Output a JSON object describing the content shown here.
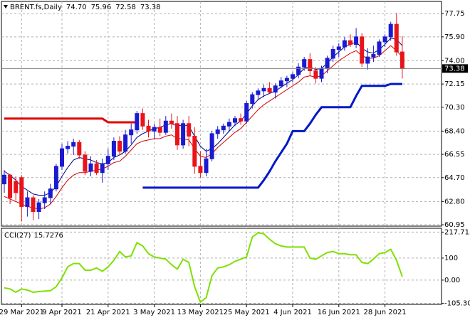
{
  "chart_data": [
    {
      "type": "candlestick",
      "title": "BRENT.fs,Daily",
      "ohlc_labels": [
        "74.70",
        "75.96",
        "72.58",
        "73.38"
      ],
      "categories": [
        null,
        null,
        null,
        "29 Mar 2021",
        null,
        null,
        null,
        null,
        null,
        null,
        "9 Apr 2021",
        null,
        null,
        null,
        null,
        null,
        null,
        null,
        "21 Apr 2021",
        null,
        null,
        null,
        null,
        null,
        null,
        null,
        "3 May 2021",
        null,
        null,
        null,
        null,
        null,
        null,
        null,
        "13 May 2021",
        null,
        null,
        null,
        null,
        null,
        null,
        null,
        "25 May 2021",
        null,
        null,
        null,
        null,
        null,
        null,
        null,
        "4 Jun 2021",
        null,
        null,
        null,
        null,
        null,
        null,
        null,
        "16 Jun 2021",
        null,
        null,
        null,
        null,
        null,
        null,
        null,
        "28 Jun 2021",
        null,
        null,
        null
      ],
      "open": [
        64.2,
        64.9,
        64.4,
        64.7,
        62.4,
        63.1,
        62.0,
        62.7,
        63.1,
        63.8,
        65.6,
        67.0,
        67.2,
        67.5,
        66.5,
        65.2,
        65.8,
        65.1,
        65.8,
        66.4,
        67.6,
        66.8,
        68.1,
        68.5,
        69.8,
        68.8,
        68.4,
        68.7,
        68.3,
        69.2,
        69.0,
        67.3,
        69.0,
        68.0,
        65.6,
        65.1,
        66.2,
        68.2,
        68.5,
        68.8,
        69.1,
        69.4,
        69.2,
        70.6,
        71.3,
        71.6,
        71.8,
        71.5,
        72.0,
        72.4,
        72.6,
        72.9,
        73.5,
        74.1,
        73.2,
        72.6,
        73.4,
        74.2,
        74.9,
        75.1,
        75.6,
        75.3,
        75.9,
        73.8,
        74.3,
        74.5,
        75.5,
        75.9,
        76.9,
        74.7
      ],
      "high": [
        65.3,
        65.0,
        64.8,
        64.9,
        63.6,
        63.3,
        63.0,
        63.6,
        64.2,
        65.8,
        67.4,
        67.6,
        67.8,
        67.7,
        66.8,
        66.4,
        66.1,
        66.2,
        67.0,
        67.9,
        68.0,
        68.5,
        69.0,
        70.0,
        70.2,
        69.3,
        69.0,
        69.4,
        69.6,
        69.8,
        69.6,
        69.3,
        69.6,
        68.7,
        66.8,
        67.0,
        68.4,
        68.8,
        69.0,
        69.4,
        69.6,
        69.8,
        70.8,
        71.5,
        71.8,
        72.1,
        72.3,
        72.2,
        72.7,
        72.8,
        73.1,
        73.8,
        74.3,
        74.6,
        73.5,
        73.6,
        74.4,
        75.2,
        75.4,
        75.9,
        76.1,
        76.6,
        76.2,
        75.0,
        75.2,
        75.7,
        76.1,
        77.1,
        77.8,
        75.96
      ],
      "low": [
        63.5,
        62.6,
        62.9,
        61.2,
        61.6,
        61.3,
        61.4,
        62.2,
        62.6,
        63.6,
        65.3,
        66.6,
        66.5,
        66.2,
        64.9,
        64.8,
        64.9,
        64.3,
        65.3,
        66.1,
        66.5,
        66.6,
        67.4,
        68.2,
        68.5,
        67.9,
        67.8,
        68.0,
        68.1,
        68.6,
        66.9,
        67.0,
        67.2,
        65.0,
        64.7,
        64.8,
        66.0,
        67.8,
        68.2,
        68.4,
        68.8,
        68.9,
        69.0,
        70.2,
        70.9,
        71.1,
        71.4,
        71.0,
        71.8,
        71.9,
        72.3,
        72.6,
        73.2,
        72.8,
        72.2,
        72.3,
        73.0,
        73.9,
        74.3,
        74.8,
        75.1,
        75.0,
        73.5,
        73.3,
        73.9,
        74.3,
        75.1,
        75.6,
        74.4,
        72.58
      ],
      "close": [
        64.9,
        63.1,
        63.5,
        62.4,
        63.1,
        62.0,
        62.7,
        63.1,
        63.8,
        65.6,
        67.0,
        67.2,
        67.5,
        66.5,
        65.2,
        65.8,
        65.1,
        65.8,
        66.4,
        67.6,
        66.8,
        68.1,
        68.5,
        69.8,
        68.8,
        68.4,
        68.7,
        68.3,
        69.2,
        69.0,
        67.3,
        69.0,
        68.0,
        65.6,
        65.1,
        66.2,
        68.2,
        68.5,
        68.8,
        69.1,
        69.4,
        69.2,
        70.6,
        71.3,
        71.6,
        71.8,
        71.5,
        72.0,
        72.4,
        72.6,
        72.9,
        73.5,
        74.1,
        73.2,
        72.6,
        73.4,
        74.2,
        74.9,
        75.1,
        75.6,
        75.3,
        75.9,
        73.8,
        74.3,
        74.5,
        75.5,
        75.9,
        76.9,
        74.7,
        73.38
      ],
      "up_color": "#1a1ad0",
      "down_color": "#e8141a",
      "series": [
        {
          "color": "#000080",
          "line_width": 1,
          "values": [
            65.2,
            64.9,
            64.5,
            64.0,
            63.7,
            63.4,
            63.3,
            63.3,
            63.5,
            64.0,
            64.8,
            65.5,
            66.1,
            66.3,
            66.2,
            66.1,
            65.9,
            65.8,
            65.9,
            66.3,
            66.5,
            66.8,
            67.3,
            67.9,
            68.2,
            68.4,
            68.6,
            68.7,
            68.9,
            69.0,
            68.8,
            68.9,
            68.8,
            68.0,
            67.2,
            66.8,
            67.0,
            67.4,
            67.9,
            68.4,
            68.9,
            69.2,
            69.8,
            70.4,
            70.9,
            71.2,
            71.4,
            71.6,
            71.9,
            72.2,
            72.5,
            72.9,
            73.4,
            73.5,
            73.3,
            73.4,
            73.8,
            74.3,
            74.7,
            75.1,
            75.3,
            75.5,
            75.0,
            74.7,
            74.6,
            74.9,
            75.3,
            75.8,
            75.7,
            75.2
          ]
        },
        {
          "color": "#d00000",
          "line_width": 1,
          "values": [
            63.2,
            63.0,
            62.8,
            62.6,
            62.4,
            62.3,
            62.2,
            62.3,
            62.6,
            63.2,
            63.9,
            64.5,
            64.9,
            65.1,
            65.1,
            65.2,
            65.3,
            65.4,
            65.6,
            65.9,
            66.0,
            66.4,
            66.9,
            67.4,
            67.6,
            67.7,
            67.8,
            67.8,
            68.0,
            68.1,
            67.8,
            67.8,
            67.7,
            67.0,
            66.4,
            66.3,
            66.6,
            67.1,
            67.5,
            67.9,
            68.3,
            68.6,
            69.1,
            69.6,
            70.1,
            70.5,
            70.8,
            71.1,
            71.4,
            71.7,
            72.0,
            72.3,
            72.7,
            72.8,
            72.7,
            72.8,
            73.2,
            73.6,
            74.0,
            74.3,
            74.6,
            74.8,
            74.4,
            74.2,
            74.2,
            74.4,
            74.8,
            75.2,
            74.8,
            74.3
          ]
        },
        {
          "color": "#e00000",
          "line_width": 3,
          "values": [
            69.4,
            69.4,
            69.4,
            69.4,
            69.4,
            69.4,
            69.4,
            69.4,
            69.4,
            69.4,
            69.4,
            69.4,
            69.4,
            69.4,
            69.4,
            69.4,
            69.4,
            69.4,
            69.1,
            69.1,
            69.1,
            69.1,
            69.1,
            69.1,
            null,
            null,
            null,
            null,
            null,
            null,
            null,
            null,
            null,
            null,
            null,
            null,
            null,
            null,
            null,
            null,
            null,
            null,
            null,
            null,
            null,
            null,
            null,
            null,
            null,
            null,
            null,
            null,
            null,
            null,
            null,
            null,
            null,
            null,
            null,
            null,
            null,
            null,
            null,
            null,
            null,
            null,
            null,
            null,
            null,
            null
          ]
        },
        {
          "color": "#0018c8",
          "line_width": 3,
          "values": [
            null,
            null,
            null,
            null,
            null,
            null,
            null,
            null,
            null,
            null,
            null,
            null,
            null,
            null,
            null,
            null,
            null,
            null,
            null,
            null,
            null,
            null,
            null,
            null,
            63.9,
            63.9,
            63.9,
            63.9,
            63.9,
            63.9,
            63.9,
            63.9,
            63.9,
            63.9,
            63.9,
            63.9,
            63.9,
            63.9,
            63.9,
            63.9,
            63.9,
            63.9,
            63.9,
            63.9,
            63.9,
            64.5,
            65.2,
            66.0,
            66.7,
            67.4,
            68.4,
            68.4,
            68.4,
            69.0,
            69.7,
            70.3,
            70.3,
            70.3,
            70.3,
            70.3,
            70.3,
            71.2,
            72.0,
            72.0,
            72.0,
            72.0,
            72.0,
            72.15,
            72.15,
            72.15
          ]
        }
      ],
      "ylim": [
        60.84,
        78.72
      ],
      "yticks": [
        60.95,
        {
          "value": 62.8,
          "label": "62.80"
        },
        {
          "value": 64.7,
          "label": "64.70"
        },
        66.55,
        {
          "value": 68.4,
          "label": "68.40"
        },
        {
          "value": 70.3,
          "label": "70.30"
        },
        72.15,
        {
          "value": 74,
          "label": "74.00"
        },
        {
          "value": 75.9,
          "label": "75.90"
        },
        77.75
      ],
      "grid": true
    },
    {
      "type": "line",
      "title": "CCI(27)",
      "value_label": "15.7276",
      "color": "#7fe000",
      "values": [
        -35,
        -40,
        -55,
        -40,
        -45,
        -55,
        -52,
        -50,
        -48,
        -30,
        10,
        60,
        75,
        75,
        45,
        45,
        55,
        40,
        60,
        90,
        130,
        105,
        110,
        170,
        155,
        120,
        105,
        100,
        95,
        70,
        50,
        95,
        80,
        -30,
        -100,
        -80,
        20,
        55,
        60,
        70,
        85,
        95,
        105,
        195,
        215,
        210,
        185,
        165,
        155,
        150,
        150,
        150,
        150,
        100,
        95,
        110,
        125,
        130,
        120,
        120,
        115,
        115,
        80,
        75,
        95,
        120,
        125,
        140,
        90,
        15.7276
      ],
      "ylim": [
        -110,
        232
      ],
      "yticks": [
        217.7159,
        100,
        {
          "value": 0,
          "label": "0.00"
        },
        -105.308
      ],
      "grid": true
    }
  ]
}
